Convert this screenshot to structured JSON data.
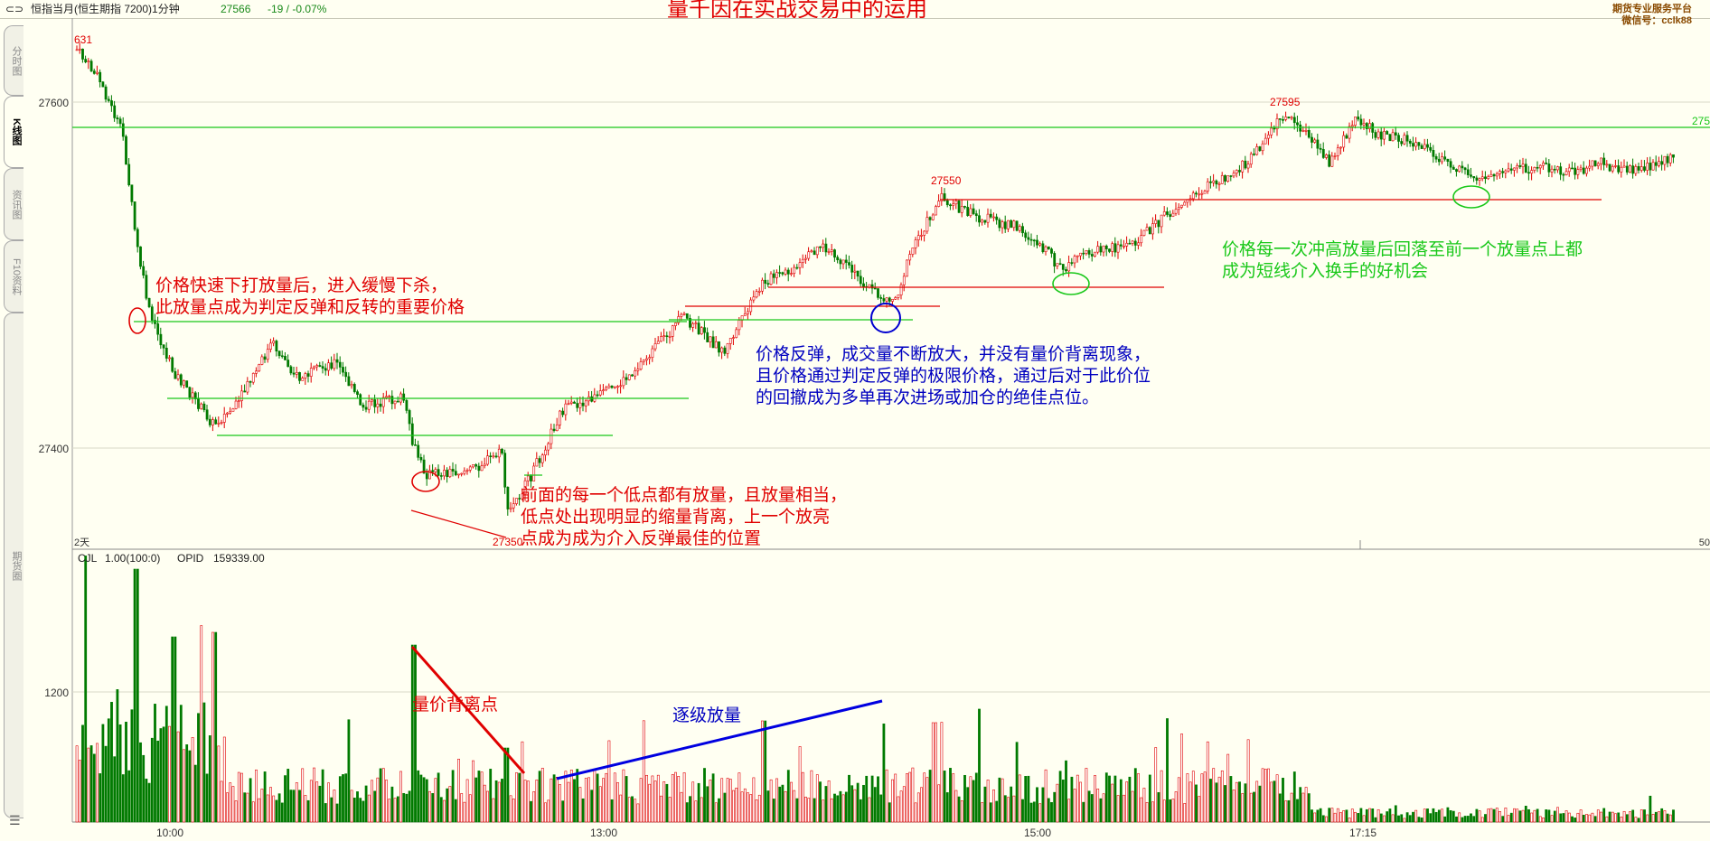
{
  "header": {
    "symbol": "恒指当月(恒生期指 7200)1分钟",
    "price": "27566",
    "change": "-19 / -0.07%",
    "platform": "期货专业服务平台",
    "wechat": "微信号：cclk88"
  },
  "title": "量千因在实战交易中的运用",
  "sidebar": {
    "tabs": [
      "分时图",
      "K线图",
      "资讯图",
      "F10资料",
      "期货圈"
    ]
  },
  "price_axis": {
    "labels": [
      "27600",
      "27400"
    ],
    "left_edge": "631",
    "right_edge": "275",
    "bottom_left": "2天",
    "bottom_right": "50"
  },
  "volume_panel": {
    "indicator": "CJL",
    "params": "1.00(100:0)",
    "opid_label": "OPID",
    "opid_value": "159339.00",
    "axis_label": "1200"
  },
  "time_axis": [
    "10:00",
    "13:00",
    "15:00",
    "17:15"
  ],
  "price_marks": [
    "27550",
    "27595",
    "27350"
  ],
  "annotations": {
    "a1": "价格快速下打放量后，进入缓慢下杀，\n此放量点成为判定反弹和反转的重要价格",
    "a2": "前面的每一个低点都有放量，且放量相当，\n低点处出现明显的缩量背离，上一个放亮\n点成为成为介入反弹最佳的位置",
    "a3": "价格反弹，成交量不断放大，并没有量价背离现象，\n且价格通过判定反弹的极限价格，通过后对于此价位\n的回撤成为多单再次进场或加仓的绝佳点位。",
    "a4": "价格每一次冲高放量后回落至前一个放量点上都\n成为短线介入换手的好机会",
    "a5": "量价背离点",
    "a6": "逐级放量"
  },
  "chart_data": {
    "type": "candlestick",
    "y_ticks": [
      27600,
      27400
    ],
    "volume_y_ticks": [
      1200
    ],
    "x_ticks": [
      "10:00",
      "13:00",
      "15:00",
      "17:15"
    ],
    "labeled_levels": [
      27595,
      27550,
      27350
    ],
    "colors": {
      "up": "#e00000",
      "down": "#007a00",
      "support": "#19c819",
      "resistance": "#e00000"
    }
  }
}
